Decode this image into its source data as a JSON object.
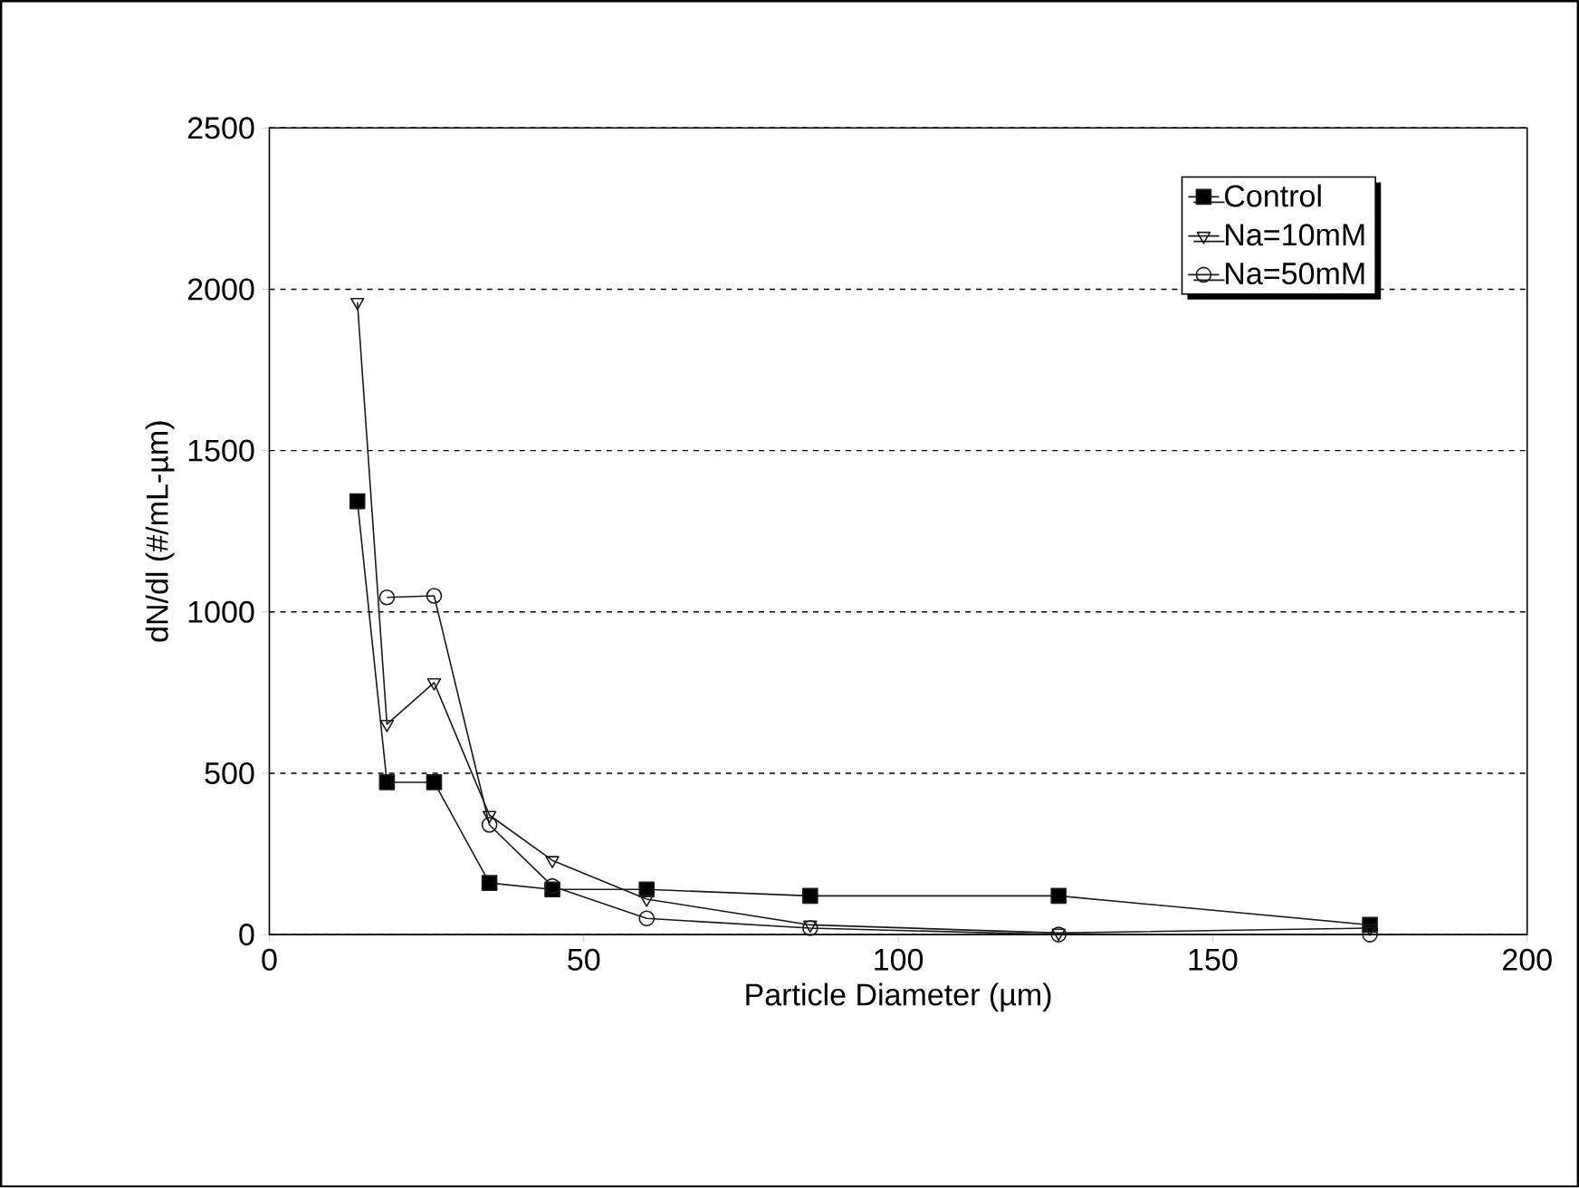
{
  "chart_data": {
    "type": "line",
    "xlabel": "Particle Diameter (µm)",
    "ylabel": "dN/dl (#/mL-µm)",
    "x": [
      14,
      18.7,
      26.2,
      35,
      45,
      60,
      86,
      125.5,
      175
    ],
    "xlim": [
      0,
      200
    ],
    "xticks": [
      0,
      50,
      100,
      150,
      200
    ],
    "ylim": [
      0,
      2500
    ],
    "yticks": [
      0,
      500,
      1000,
      1500,
      2000,
      2500
    ],
    "grid": "y",
    "legend": "top right",
    "series": [
      {
        "name": "Control",
        "color": "#1a1a1a",
        "marker": "square",
        "values": [
          1343,
          472,
          472,
          160,
          140,
          140,
          120,
          120,
          30
        ]
      },
      {
        "name": "Na=10mM",
        "color": "#1a1a1a",
        "marker": "triangle",
        "values": [
          1960,
          652,
          781,
          370,
          230,
          110,
          30,
          5,
          20
        ]
      },
      {
        "name": "Na=50mM",
        "color": "#1a1a1a",
        "marker": "circle",
        "values": [
          null,
          1045,
          1050,
          340,
          150,
          50,
          20,
          0,
          0
        ]
      }
    ]
  }
}
